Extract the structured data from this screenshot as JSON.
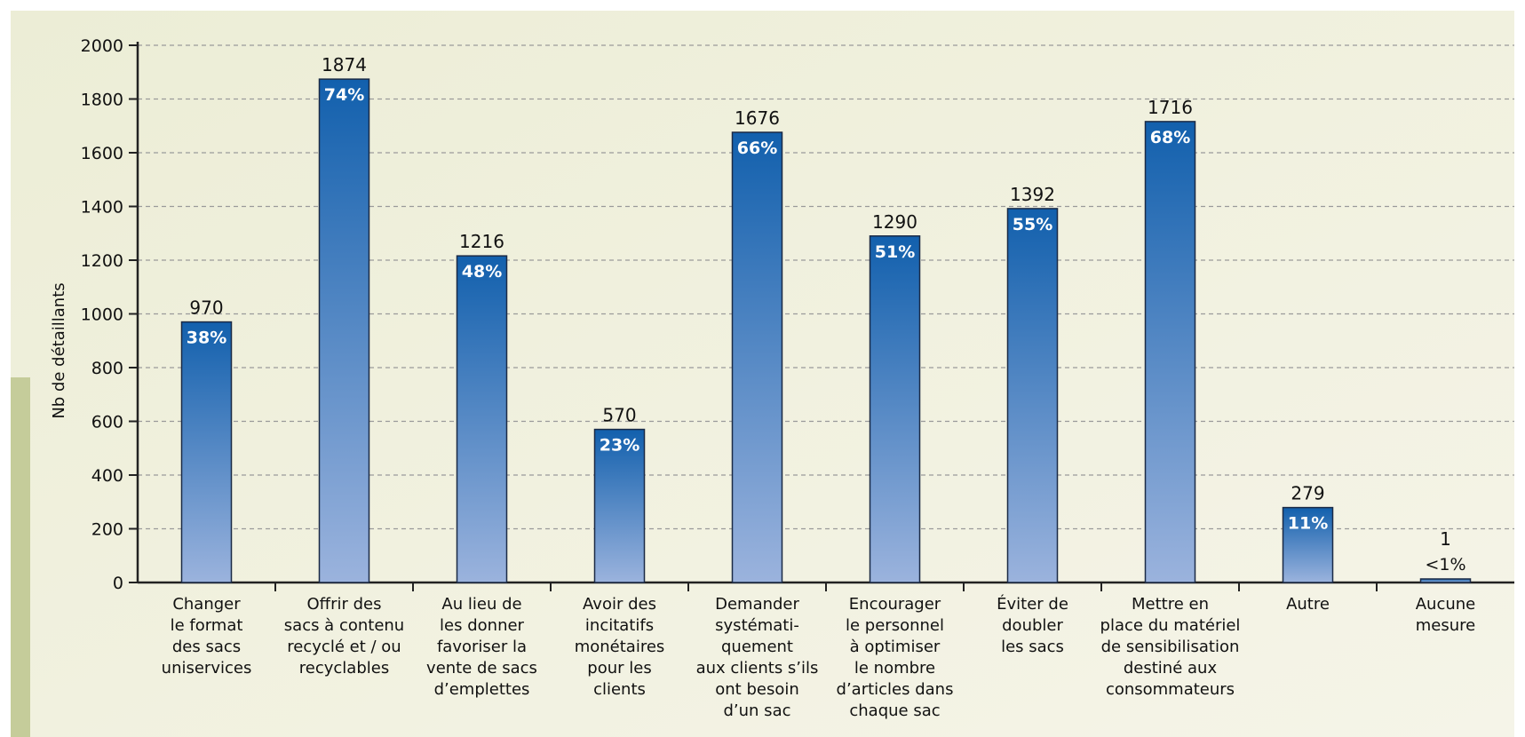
{
  "chart_data": {
    "type": "bar",
    "ylabel": "Nb de détaillants",
    "ylim": [
      0,
      2000
    ],
    "yticks": [
      0,
      200,
      400,
      600,
      800,
      1000,
      1200,
      1400,
      1600,
      1800,
      2000
    ],
    "grid": "horizontal-dashed",
    "categories": [
      "Changer le format des sacs uniservices",
      "Offrir des sacs à contenu recyclé et / ou recyclables",
      "Au lieu de les donner favoriser la vente de sacs d’emplettes",
      "Avoir des incitatifs monétaires pour les clients",
      "Demander systémati-quement aux clients s’ils ont besoin d’un sac",
      "Encourager le personnel à optimiser le nombre d’articles dans chaque sac",
      "Éviter de doubler les sacs",
      "Mettre en place du matériel de sensibilisation destiné aux consommateurs",
      "Autre",
      "Aucune mesure"
    ],
    "category_lines": [
      [
        "Changer",
        "le format",
        "des sacs",
        "uniservices"
      ],
      [
        "Offrir des",
        "sacs à contenu",
        "recyclé et / ou",
        "recyclables"
      ],
      [
        "Au lieu de",
        "les donner",
        "favoriser la",
        "vente de sacs",
        "d’emplettes"
      ],
      [
        "Avoir des",
        "incitatifs",
        "monétaires",
        "pour les",
        "clients"
      ],
      [
        "Demander",
        "systémati-",
        "quement",
        "aux clients s’ils",
        "ont besoin",
        "d’un sac"
      ],
      [
        "Encourager",
        "le personnel",
        "à optimiser",
        "le nombre",
        "d’articles dans",
        "chaque sac"
      ],
      [
        "Éviter de",
        "doubler",
        "les sacs"
      ],
      [
        "Mettre en",
        "place du matériel",
        "de sensibilisation",
        "destiné aux",
        "consommateurs"
      ],
      [
        "Autre"
      ],
      [
        "Aucune",
        "mesure"
      ]
    ],
    "values": [
      970,
      1874,
      1216,
      570,
      1676,
      1290,
      1392,
      1716,
      279,
      1
    ],
    "value_labels": [
      "970",
      "1874",
      "1216",
      "570",
      "1676",
      "1290",
      "1392",
      "1716",
      "279",
      "1"
    ],
    "percent_labels": [
      "38%",
      "74%",
      "48%",
      "23%",
      "66%",
      "51%",
      "55%",
      "68%",
      "11%",
      "<1%"
    ],
    "bar_color_top": "#1260ad",
    "bar_color_bottom": "#9bb3dd"
  }
}
